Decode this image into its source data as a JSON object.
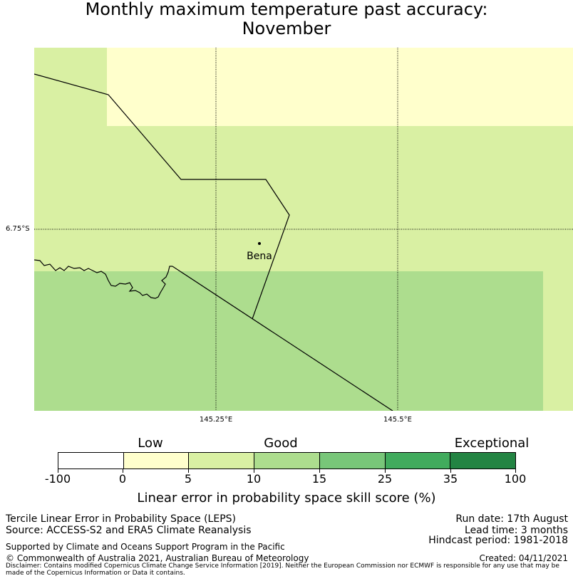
{
  "title": {
    "line1": "Monthly maximum temperature past accuracy:",
    "line2": "November"
  },
  "map": {
    "lat_label": "6.75°S",
    "lon_labels": [
      "145.25°E",
      "145.5°E"
    ],
    "place": "Bena",
    "colors": {
      "low": "#ffffcc",
      "good_light": "#d9f0a3",
      "good": "#addd8e"
    }
  },
  "legend": {
    "categories": [
      "Low",
      "Good",
      "Exceptional"
    ],
    "tick_labels": [
      "-100",
      "0",
      "5",
      "10",
      "15",
      "25",
      "35",
      "100"
    ],
    "colors": [
      "#ffffff",
      "#ffffcc",
      "#d9f0a3",
      "#addd8e",
      "#78c679",
      "#41ab5d",
      "#238443"
    ],
    "label": "Linear error in probability space skill score (%)"
  },
  "info": {
    "line1": "Tercile Linear Error in Probability Space (LEPS)",
    "line2": "Source: ACCESS-S2 and ERA5 Climate Reanalysis",
    "support": "Supported by Climate and Oceans Support Program in the Pacific",
    "copyright": "© Commonwealth of Australia 2021, Australian Bureau of Meteorology",
    "disclaimer": "Disclaimer: Contains modified Copernicus Climate Change Service Information [2019]. Neither the European Commission nor ECMWF is responsible for any use that may be made of the Copernicus Information or Data it contains.",
    "run_date": "Run date: 17th August",
    "lead_time": "Lead time: 3 months",
    "hindcast": "Hindcast period: 1981-2018",
    "created": "Created: 04/11/2021"
  }
}
